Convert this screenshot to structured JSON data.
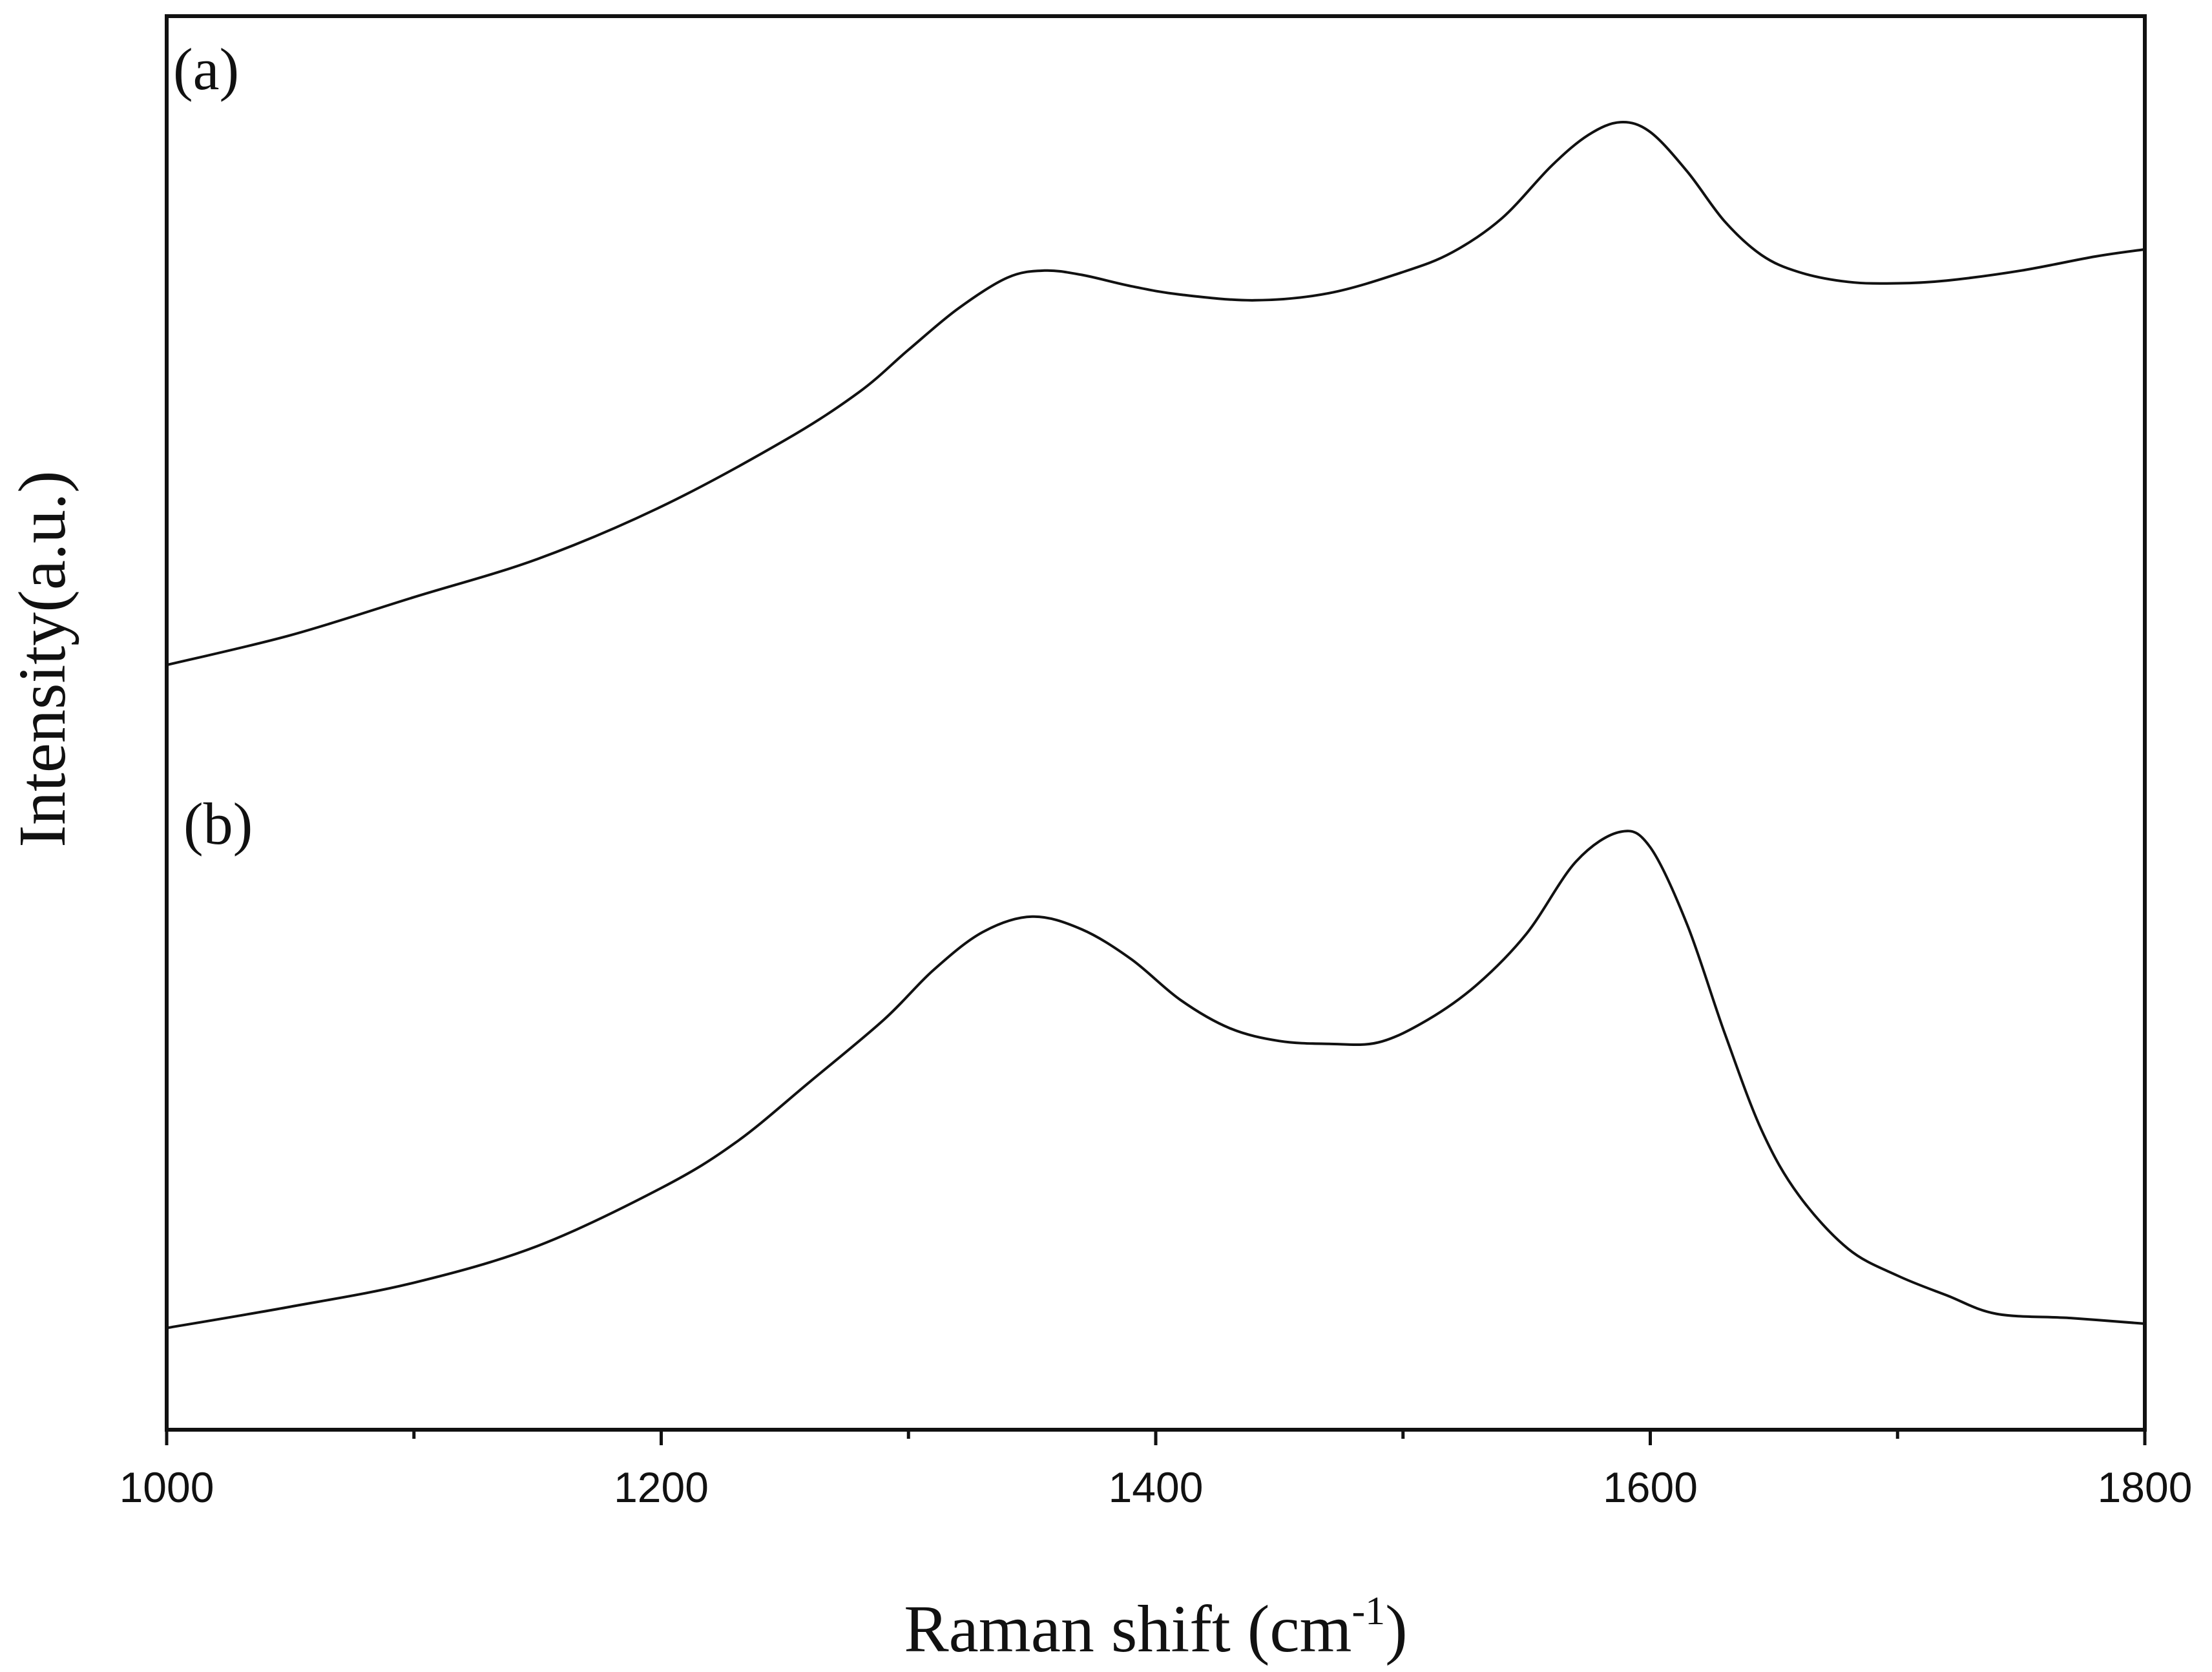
{
  "chart_data": {
    "type": "line",
    "title": "",
    "xlabel": "Raman shift (cm",
    "xlabel_sup": "-1",
    "xlabel_close": ")",
    "ylabel": "Intensity(a.u.)",
    "xlim": [
      1000,
      1800
    ],
    "ylim": [
      0,
      100
    ],
    "x_ticks": [
      1000,
      1200,
      1400,
      1600,
      1800
    ],
    "x_tick_labels": [
      "1000",
      "1200",
      "1400",
      "1600",
      "1800"
    ],
    "x_minor_ticks": [
      1100,
      1300,
      1500,
      1700
    ],
    "y_ticks_shown": false,
    "grid": false,
    "series": [
      {
        "label": "(a)",
        "color": "#111111",
        "points": [
          [
            1000,
            54.1
          ],
          [
            1050,
            56.2
          ],
          [
            1100,
            58.9
          ],
          [
            1150,
            61.6
          ],
          [
            1200,
            65.3
          ],
          [
            1250,
            70.0
          ],
          [
            1280,
            73.4
          ],
          [
            1300,
            76.4
          ],
          [
            1320,
            79.3
          ],
          [
            1340,
            81.5
          ],
          [
            1355,
            82.0
          ],
          [
            1370,
            81.7
          ],
          [
            1390,
            80.9
          ],
          [
            1410,
            80.3
          ],
          [
            1440,
            79.9
          ],
          [
            1470,
            80.4
          ],
          [
            1500,
            81.9
          ],
          [
            1520,
            83.3
          ],
          [
            1540,
            85.7
          ],
          [
            1560,
            89.4
          ],
          [
            1575,
            91.6
          ],
          [
            1588,
            92.5
          ],
          [
            1600,
            91.8
          ],
          [
            1615,
            89.0
          ],
          [
            1630,
            85.5
          ],
          [
            1645,
            83.1
          ],
          [
            1660,
            81.9
          ],
          [
            1680,
            81.2
          ],
          [
            1700,
            81.1
          ],
          [
            1720,
            81.3
          ],
          [
            1750,
            82.0
          ],
          [
            1780,
            83.0
          ],
          [
            1800,
            83.5
          ]
        ]
      },
      {
        "label": "(b)",
        "color": "#111111",
        "points": [
          [
            1000,
            7.2
          ],
          [
            1050,
            8.7
          ],
          [
            1100,
            10.4
          ],
          [
            1150,
            13.0
          ],
          [
            1200,
            17.1
          ],
          [
            1230,
            20.3
          ],
          [
            1260,
            24.6
          ],
          [
            1290,
            29.0
          ],
          [
            1310,
            32.5
          ],
          [
            1330,
            35.2
          ],
          [
            1350,
            36.3
          ],
          [
            1370,
            35.4
          ],
          [
            1390,
            33.3
          ],
          [
            1410,
            30.4
          ],
          [
            1430,
            28.4
          ],
          [
            1450,
            27.5
          ],
          [
            1470,
            27.3
          ],
          [
            1490,
            27.4
          ],
          [
            1510,
            29.0
          ],
          [
            1530,
            31.5
          ],
          [
            1550,
            35.1
          ],
          [
            1570,
            40.2
          ],
          [
            1588,
            42.3
          ],
          [
            1600,
            41.2
          ],
          [
            1615,
            35.7
          ],
          [
            1630,
            28.1
          ],
          [
            1645,
            21.2
          ],
          [
            1660,
            16.6
          ],
          [
            1680,
            12.8
          ],
          [
            1700,
            10.9
          ],
          [
            1720,
            9.5
          ],
          [
            1740,
            8.2
          ],
          [
            1770,
            7.9
          ],
          [
            1800,
            7.5
          ]
        ]
      }
    ]
  }
}
